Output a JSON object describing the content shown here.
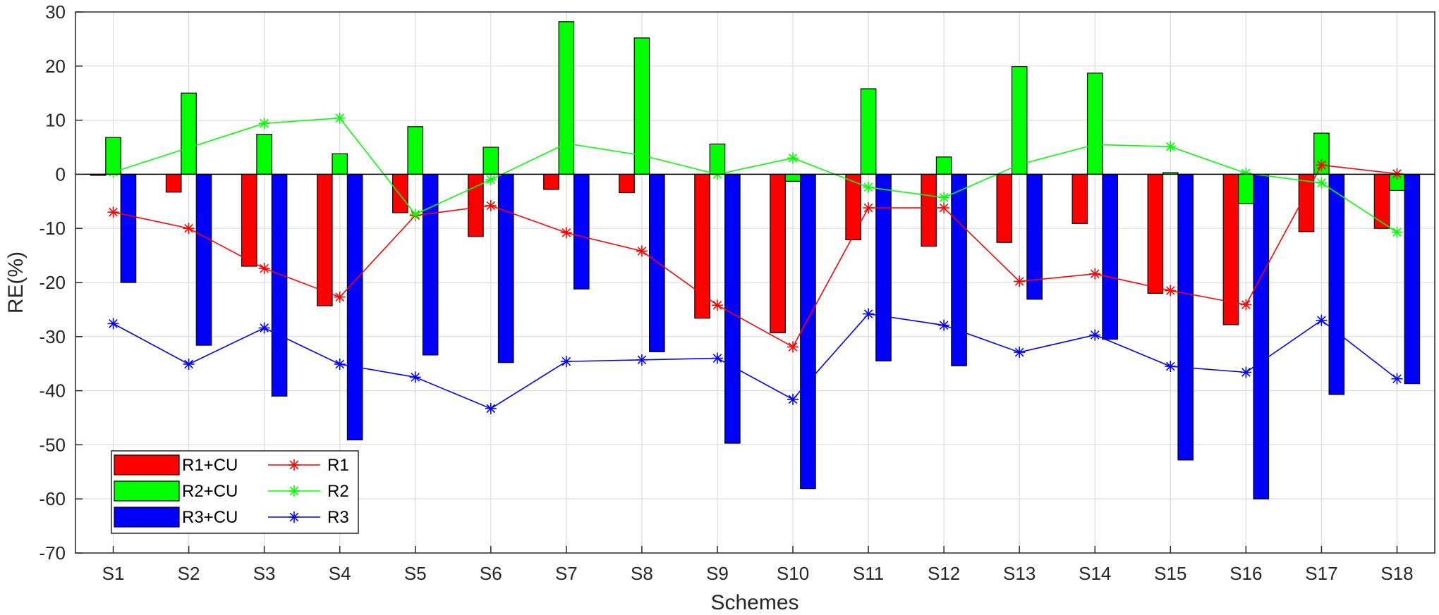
{
  "chart_data": {
    "type": "bar",
    "xlabel": "Schemes",
    "ylabel": "RE(%)",
    "ylim": [
      -70,
      30
    ],
    "yticks": [
      -70,
      -60,
      -50,
      -40,
      -30,
      -20,
      -10,
      0,
      10,
      20,
      30
    ],
    "grid": true,
    "legend_position": "bottom-left",
    "categories": [
      "S1",
      "S2",
      "S3",
      "S4",
      "S5",
      "S6",
      "S7",
      "S8",
      "S9",
      "S10",
      "S11",
      "S12",
      "S13",
      "S14",
      "S15",
      "S16",
      "S17",
      "S18"
    ],
    "bar_series": [
      {
        "name": "R1+CU",
        "color": "#ff0000",
        "values": [
          -0.2,
          -3.3,
          -17.0,
          -24.3,
          -7.1,
          -11.5,
          -2.8,
          -3.4,
          -26.6,
          -29.3,
          -12.1,
          -13.3,
          -12.6,
          -9.1,
          -22.0,
          -27.8,
          -10.6,
          -10.0
        ]
      },
      {
        "name": "R2+CU",
        "color": "#00ff00",
        "values": [
          6.8,
          15.0,
          7.4,
          3.8,
          8.8,
          5.0,
          28.2,
          25.2,
          5.6,
          -1.3,
          15.8,
          3.2,
          19.9,
          18.7,
          0.3,
          -5.4,
          7.6,
          -3.0
        ]
      },
      {
        "name": "R3+CU",
        "color": "#0000ff",
        "values": [
          -20.0,
          -31.6,
          -41.0,
          -49.1,
          -33.4,
          -34.8,
          -21.2,
          -32.8,
          -49.7,
          -58.1,
          -34.5,
          -35.4,
          -23.1,
          -30.5,
          -52.8,
          -60.0,
          -40.7,
          -38.7
        ]
      }
    ],
    "line_series": [
      {
        "name": "R1",
        "color": "#ff0000",
        "values": [
          -7.0,
          -10.0,
          -17.4,
          -22.7,
          -7.6,
          -5.8,
          -10.8,
          -14.2,
          -24.2,
          -31.9,
          -6.2,
          -6.2,
          -19.8,
          -18.4,
          -21.5,
          -24.1,
          1.7,
          0.1
        ]
      },
      {
        "name": "R2",
        "color": "#00ff00",
        "values": [
          0.4,
          4.9,
          9.4,
          10.4,
          -7.4,
          -1.0,
          5.7,
          3.5,
          0.0,
          3.0,
          -2.4,
          -4.3,
          1.8,
          5.5,
          5.1,
          0.2,
          -1.6,
          -10.7
        ]
      },
      {
        "name": "R3",
        "color": "#0000ff",
        "values": [
          -27.6,
          -35.1,
          -28.4,
          -35.1,
          -37.5,
          -43.3,
          -34.6,
          -34.3,
          -34.0,
          -41.6,
          -25.8,
          -27.9,
          -32.9,
          -29.7,
          -35.5,
          -36.6,
          -27.0,
          -37.8
        ]
      }
    ],
    "legend": [
      {
        "label": "R1+CU",
        "kind": "bar",
        "color": "#ff0000"
      },
      {
        "label": "R1",
        "kind": "line",
        "color": "#ff0000"
      },
      {
        "label": "R2+CU",
        "kind": "bar",
        "color": "#00ff00"
      },
      {
        "label": "R2",
        "kind": "line",
        "color": "#00ff00"
      },
      {
        "label": "R3+CU",
        "kind": "bar",
        "color": "#0000ff"
      },
      {
        "label": "R3",
        "kind": "line",
        "color": "#0000ff"
      }
    ]
  }
}
